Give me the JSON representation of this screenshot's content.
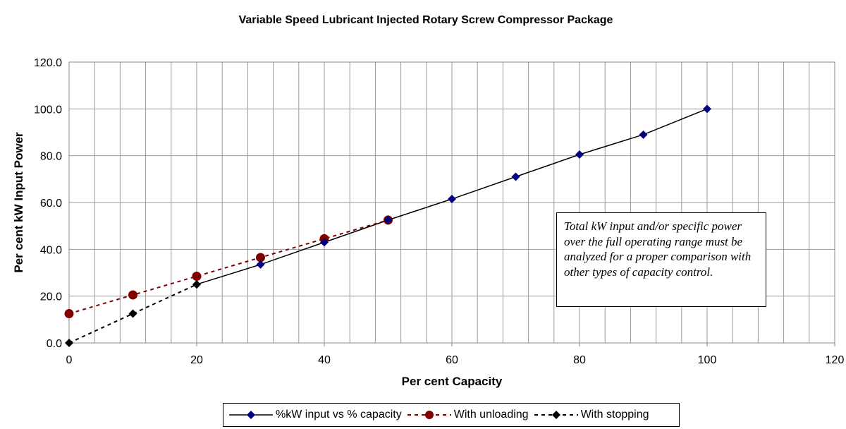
{
  "chart_data": {
    "type": "line",
    "title": "Variable Speed Lubricant Injected Rotary Screw Compressor Package",
    "xlabel": "Per cent Capacity",
    "ylabel": "Per cent kW Input Power",
    "xlim": [
      0,
      120
    ],
    "ylim": [
      0,
      120
    ],
    "x_ticks": [
      "0",
      "20",
      "40",
      "60",
      "80",
      "100",
      "120"
    ],
    "y_ticks": [
      "0.0",
      "20.0",
      "40.0",
      "60.0",
      "80.0",
      "100.0",
      "120.0"
    ],
    "grid": true,
    "legend_position": "bottom",
    "series": [
      {
        "name": "%kW input vs % capacity",
        "color": "#000080",
        "line_color": "#000000",
        "line": "solid",
        "marker": "diamond",
        "x": [
          20,
          30,
          40,
          50,
          60,
          70,
          80,
          90,
          100
        ],
        "y": [
          25.0,
          33.5,
          43.0,
          52.5,
          61.5,
          71.0,
          80.5,
          89.0,
          100.0
        ]
      },
      {
        "name": "With unloading",
        "color": "#800000",
        "line_color": "#800000",
        "line": "dashed",
        "marker": "circle",
        "x": [
          0,
          10,
          20,
          30,
          40,
          50
        ],
        "y": [
          12.5,
          20.5,
          28.5,
          36.5,
          44.5,
          52.5
        ]
      },
      {
        "name": "With stopping",
        "color": "#000000",
        "line_color": "#000000",
        "line": "dashed",
        "marker": "diamond",
        "x": [
          0,
          10,
          20
        ],
        "y": [
          0.0,
          12.5,
          25.0
        ]
      }
    ],
    "annotation": "Total kW input and/or specific power over the full operating range must be analyzed for a proper comparison with other types of capacity control."
  }
}
